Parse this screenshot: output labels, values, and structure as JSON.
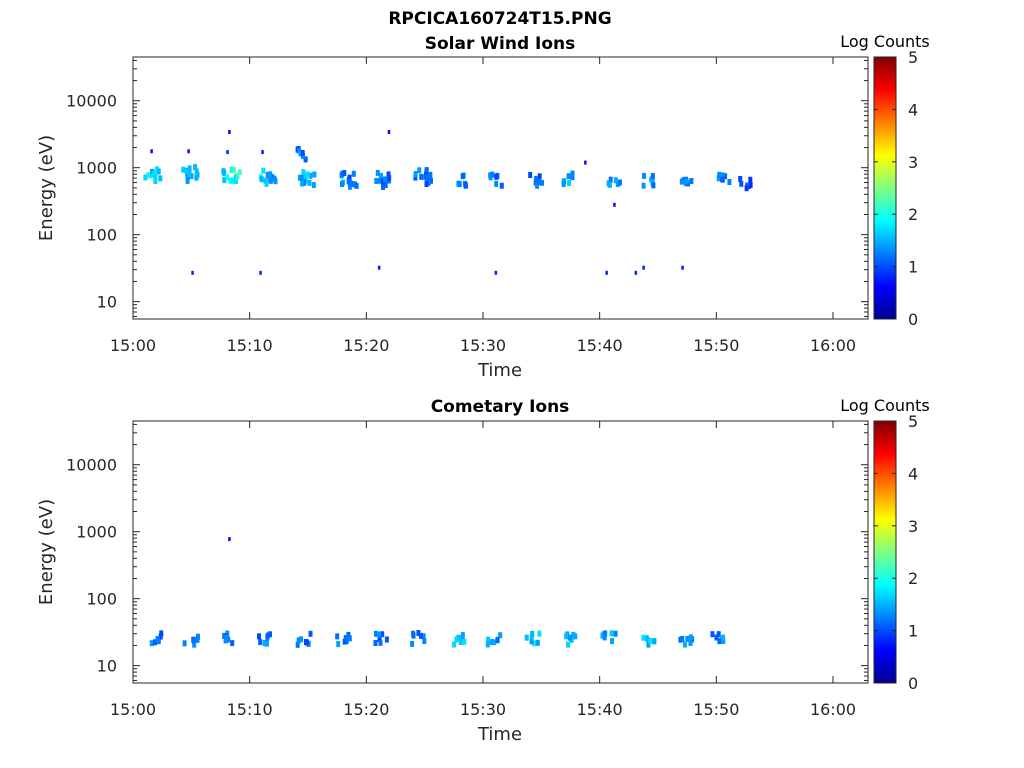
{
  "figure": {
    "title": "RPCICA160724T15.PNG"
  },
  "colorbar": {
    "label": "Log Counts",
    "ticks": [
      "0",
      "1",
      "2",
      "3",
      "4",
      "5"
    ],
    "min": 0,
    "max": 5
  },
  "chart_data": [
    {
      "type": "heatmap",
      "title": "Solar Wind Ions",
      "xlabel": "Time",
      "ylabel": "Energy (eV)",
      "y_scale": "log",
      "xlim": [
        "15:00",
        "16:03"
      ],
      "ylim": [
        5.5,
        45000
      ],
      "x_ticks": [
        "15:00",
        "15:10",
        "15:20",
        "15:30",
        "15:40",
        "15:50",
        "16:00"
      ],
      "y_ticks": [
        "10",
        "100",
        "1000",
        "10000"
      ],
      "color_scale": "Log Counts",
      "points": [
        {
          "t": "15:01:40",
          "e": 850,
          "c": 1.4
        },
        {
          "t": "15:01:50",
          "e": 750,
          "c": 1.1
        },
        {
          "t": "15:01:40",
          "e": 1700,
          "c": 0.3
        },
        {
          "t": "15:04:50",
          "e": 850,
          "c": 1.2
        },
        {
          "t": "15:05:00",
          "e": 750,
          "c": 1.0
        },
        {
          "t": "15:04:50",
          "e": 1700,
          "c": 0.3
        },
        {
          "t": "15:05:10",
          "e": 26,
          "c": 0.4
        },
        {
          "t": "15:08:20",
          "e": 800,
          "c": 1.3
        },
        {
          "t": "15:08:40",
          "e": 750,
          "c": 1.6
        },
        {
          "t": "15:08:10",
          "e": 1650,
          "c": 0.4
        },
        {
          "t": "15:08:20",
          "e": 3300,
          "c": 0.3
        },
        {
          "t": "15:11:30",
          "e": 800,
          "c": 1.3
        },
        {
          "t": "15:11:40",
          "e": 700,
          "c": 1.0
        },
        {
          "t": "15:11:10",
          "e": 1650,
          "c": 0.4
        },
        {
          "t": "15:11:00",
          "e": 26,
          "c": 0.4
        },
        {
          "t": "15:14:40",
          "e": 750,
          "c": 1.2
        },
        {
          "t": "15:15:00",
          "e": 650,
          "c": 0.9
        },
        {
          "t": "15:14:40",
          "e": 1600,
          "c": 0.8
        },
        {
          "t": "15:18:20",
          "e": 680,
          "c": 0.9
        },
        {
          "t": "15:18:40",
          "e": 600,
          "c": 0.7
        },
        {
          "t": "15:21:20",
          "e": 750,
          "c": 0.8
        },
        {
          "t": "15:21:30",
          "e": 600,
          "c": 0.7
        },
        {
          "t": "15:21:10",
          "e": 31,
          "c": 0.4
        },
        {
          "t": "15:22:00",
          "e": 3300,
          "c": 0.3
        },
        {
          "t": "15:24:40",
          "e": 750,
          "c": 0.9
        },
        {
          "t": "15:25:00",
          "e": 650,
          "c": 0.7
        },
        {
          "t": "15:28:00",
          "e": 650,
          "c": 0.9
        },
        {
          "t": "15:31:10",
          "e": 650,
          "c": 0.8
        },
        {
          "t": "15:31:10",
          "e": 26,
          "c": 0.4
        },
        {
          "t": "15:34:30",
          "e": 650,
          "c": 0.8
        },
        {
          "t": "15:37:30",
          "e": 700,
          "c": 1.1
        },
        {
          "t": "15:38:50",
          "e": 1150,
          "c": 0.3
        },
        {
          "t": "15:40:40",
          "e": 26,
          "c": 0.4
        },
        {
          "t": "15:41:10",
          "e": 650,
          "c": 0.9
        },
        {
          "t": "15:41:20",
          "e": 270,
          "c": 0.3
        },
        {
          "t": "15:43:10",
          "e": 26,
          "c": 0.4
        },
        {
          "t": "15:43:50",
          "e": 31,
          "c": 0.4
        },
        {
          "t": "15:44:10",
          "e": 620,
          "c": 0.9
        },
        {
          "t": "15:47:10",
          "e": 31,
          "c": 0.4
        },
        {
          "t": "15:47:20",
          "e": 650,
          "c": 0.9
        },
        {
          "t": "15:50:40",
          "e": 650,
          "c": 0.9
        },
        {
          "t": "15:52:30",
          "e": 600,
          "c": 0.6
        }
      ]
    },
    {
      "type": "heatmap",
      "title": "Cometary Ions",
      "xlabel": "Time",
      "ylabel": "Energy (eV)",
      "y_scale": "log",
      "xlim": [
        "15:00",
        "16:03"
      ],
      "ylim": [
        5.5,
        45000
      ],
      "x_ticks": [
        "15:00",
        "15:10",
        "15:20",
        "15:30",
        "15:40",
        "15:50",
        "16:00"
      ],
      "y_ticks": [
        "10",
        "100",
        "1000",
        "10000"
      ],
      "color_scale": "Log Counts",
      "points": [
        {
          "t": "15:01:50",
          "e": 25,
          "c": 0.8
        },
        {
          "t": "15:05:00",
          "e": 25,
          "c": 0.8
        },
        {
          "t": "15:08:20",
          "e": 750,
          "c": 0.3
        },
        {
          "t": "15:08:10",
          "e": 25,
          "c": 0.9
        },
        {
          "t": "15:11:20",
          "e": 25,
          "c": 0.8
        },
        {
          "t": "15:14:40",
          "e": 25,
          "c": 0.8
        },
        {
          "t": "15:18:00",
          "e": 25,
          "c": 0.8
        },
        {
          "t": "15:21:10",
          "e": 25,
          "c": 0.8
        },
        {
          "t": "15:24:30",
          "e": 25,
          "c": 0.8
        },
        {
          "t": "15:27:50",
          "e": 25,
          "c": 1.1
        },
        {
          "t": "15:31:00",
          "e": 25,
          "c": 1.0
        },
        {
          "t": "15:34:20",
          "e": 25,
          "c": 1.2
        },
        {
          "t": "15:37:40",
          "e": 25,
          "c": 1.1
        },
        {
          "t": "15:40:50",
          "e": 25,
          "c": 1.0
        },
        {
          "t": "15:44:10",
          "e": 25,
          "c": 1.2
        },
        {
          "t": "15:47:30",
          "e": 25,
          "c": 1.0
        },
        {
          "t": "15:50:10",
          "e": 25,
          "c": 0.9
        }
      ]
    }
  ]
}
